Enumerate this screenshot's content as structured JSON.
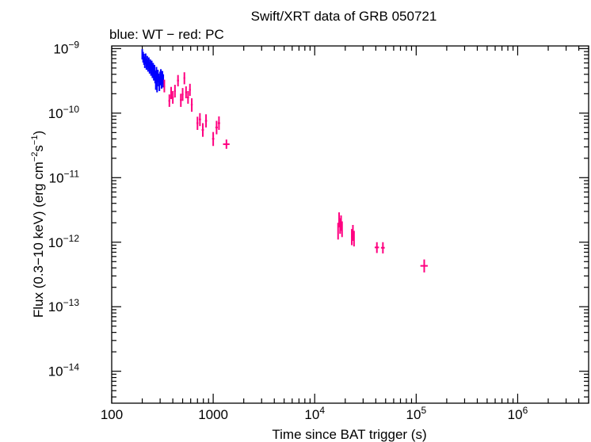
{
  "chart_data": {
    "type": "scatter",
    "title": "Swift/XRT data of GRB 050721",
    "subtitle": "blue: WT − red: PC",
    "xlabel": "Time since BAT trigger (s)",
    "ylabel_parts": [
      "Flux (0.3−10 keV) (erg cm",
      "−2",
      "s",
      "−1",
      ")"
    ],
    "x_scale": "log",
    "y_scale": "log",
    "xlim": [
      100,
      5000000
    ],
    "ylim": [
      3.2e-15,
      1.1e-09
    ],
    "x_ticks": [
      {
        "value": 100,
        "label": "100"
      },
      {
        "value": 1000,
        "label": "1000"
      },
      {
        "value": 10000,
        "base": "10",
        "exp": "4"
      },
      {
        "value": 100000,
        "base": "10",
        "exp": "5"
      },
      {
        "value": 1000000,
        "base": "10",
        "exp": "6"
      }
    ],
    "y_ticks": [
      {
        "value": 1e-09,
        "base": "10",
        "exp": "−9"
      },
      {
        "value": 1e-10,
        "base": "10",
        "exp": "−10"
      },
      {
        "value": 1e-11,
        "base": "10",
        "exp": "−11"
      },
      {
        "value": 1e-12,
        "base": "10",
        "exp": "−12"
      },
      {
        "value": 1e-13,
        "base": "10",
        "exp": "−13"
      },
      {
        "value": 1e-14,
        "base": "10",
        "exp": "−14"
      }
    ],
    "grid": false,
    "series": [
      {
        "mode": "WT",
        "color": "#0000ff",
        "points": [
          {
            "t": 200,
            "f": 8.2e-10,
            "tlo": 198,
            "thi": 202,
            "flo": 6.8e-10,
            "fhi": 9.8e-10
          },
          {
            "t": 204,
            "f": 7.4e-10,
            "tlo": 202,
            "thi": 206,
            "flo": 6.1e-10,
            "fhi": 8.9e-10
          },
          {
            "t": 208,
            "f": 6.9e-10,
            "tlo": 206,
            "thi": 210,
            "flo": 5.6e-10,
            "fhi": 8.3e-10
          },
          {
            "t": 212,
            "f": 6.2e-10,
            "tlo": 210,
            "thi": 214,
            "flo": 5e-10,
            "fhi": 7.5e-10
          },
          {
            "t": 216,
            "f": 7e-10,
            "tlo": 214,
            "thi": 218,
            "flo": 5.7e-10,
            "fhi": 8.4e-10
          },
          {
            "t": 220,
            "f": 5.8e-10,
            "tlo": 218,
            "thi": 222,
            "flo": 4.7e-10,
            "fhi": 7e-10
          },
          {
            "t": 224,
            "f": 6.4e-10,
            "tlo": 222,
            "thi": 226,
            "flo": 5.2e-10,
            "fhi": 7.7e-10
          },
          {
            "t": 228,
            "f": 5.5e-10,
            "tlo": 226,
            "thi": 230,
            "flo": 4.4e-10,
            "fhi": 6.7e-10
          },
          {
            "t": 232,
            "f": 6e-10,
            "tlo": 230,
            "thi": 234,
            "flo": 4.9e-10,
            "fhi": 7.3e-10
          },
          {
            "t": 236,
            "f": 5.1e-10,
            "tlo": 234,
            "thi": 238,
            "flo": 4.1e-10,
            "fhi": 6.2e-10
          },
          {
            "t": 240,
            "f": 5.6e-10,
            "tlo": 238,
            "thi": 242,
            "flo": 4.5e-10,
            "fhi": 6.8e-10
          },
          {
            "t": 244,
            "f": 4.8e-10,
            "tlo": 242,
            "thi": 246,
            "flo": 3.8e-10,
            "fhi": 5.9e-10
          },
          {
            "t": 248,
            "f": 5.3e-10,
            "tlo": 246,
            "thi": 250,
            "flo": 4.2e-10,
            "fhi": 6.5e-10
          },
          {
            "t": 252,
            "f": 4.4e-10,
            "tlo": 250,
            "thi": 254,
            "flo": 3.5e-10,
            "fhi": 5.4e-10
          },
          {
            "t": 256,
            "f": 4.9e-10,
            "tlo": 254,
            "thi": 258,
            "flo": 3.9e-10,
            "fhi": 6e-10
          },
          {
            "t": 260,
            "f": 4e-10,
            "tlo": 258,
            "thi": 262,
            "flo": 3.2e-10,
            "fhi": 4.9e-10
          },
          {
            "t": 264,
            "f": 4.6e-10,
            "tlo": 262,
            "thi": 266,
            "flo": 3.7e-10,
            "fhi": 5.6e-10
          },
          {
            "t": 268,
            "f": 3.7e-10,
            "tlo": 266,
            "thi": 270,
            "flo": 2.9e-10,
            "fhi": 4.6e-10
          },
          {
            "t": 272,
            "f": 3e-10,
            "tlo": 270,
            "thi": 274,
            "flo": 2.3e-10,
            "fhi": 3.8e-10
          },
          {
            "t": 276,
            "f": 4.2e-10,
            "tlo": 274,
            "thi": 278,
            "flo": 3.3e-10,
            "fhi": 5.2e-10
          },
          {
            "t": 280,
            "f": 2.7e-10,
            "tlo": 278,
            "thi": 282,
            "flo": 2.1e-10,
            "fhi": 3.4e-10
          },
          {
            "t": 285,
            "f": 3.8e-10,
            "tlo": 282,
            "thi": 288,
            "flo": 3e-10,
            "fhi": 4.7e-10
          },
          {
            "t": 290,
            "f": 3.3e-10,
            "tlo": 288,
            "thi": 292,
            "flo": 2.6e-10,
            "fhi": 4.1e-10
          },
          {
            "t": 295,
            "f": 2.9e-10,
            "tlo": 292,
            "thi": 298,
            "flo": 2.2e-10,
            "fhi": 3.7e-10
          },
          {
            "t": 300,
            "f": 3.5e-10,
            "tlo": 298,
            "thi": 302,
            "flo": 2.7e-10,
            "fhi": 4.4e-10
          },
          {
            "t": 305,
            "f": 3.9e-10,
            "tlo": 302,
            "thi": 308,
            "flo": 3.1e-10,
            "fhi": 4.8e-10
          },
          {
            "t": 310,
            "f": 3.1e-10,
            "tlo": 308,
            "thi": 313,
            "flo": 2.4e-10,
            "fhi": 3.9e-10
          },
          {
            "t": 316,
            "f": 3.6e-10,
            "tlo": 313,
            "thi": 319,
            "flo": 2.8e-10,
            "fhi": 4.5e-10
          },
          {
            "t": 322,
            "f": 3.2e-10,
            "tlo": 319,
            "thi": 325,
            "flo": 2.5e-10,
            "fhi": 4e-10
          }
        ]
      },
      {
        "mode": "PC",
        "color": "#ff0080",
        "points": [
          {
            "t": 330,
            "f": 2.6e-10,
            "tlo": 325,
            "thi": 336,
            "flo": 2.1e-10,
            "fhi": 3.3e-10
          },
          {
            "t": 370,
            "f": 1.55e-10,
            "tlo": 362,
            "thi": 378,
            "flo": 1.25e-10,
            "fhi": 1.95e-10
          },
          {
            "t": 385,
            "f": 2.05e-10,
            "tlo": 378,
            "thi": 392,
            "flo": 1.65e-10,
            "fhi": 2.55e-10
          },
          {
            "t": 400,
            "f": 1.75e-10,
            "tlo": 393,
            "thi": 408,
            "flo": 1.4e-10,
            "fhi": 2.2e-10
          },
          {
            "t": 420,
            "f": 2.2e-10,
            "tlo": 412,
            "thi": 428,
            "flo": 1.75e-10,
            "fhi": 2.75e-10
          },
          {
            "t": 450,
            "f": 3.2e-10,
            "tlo": 440,
            "thi": 460,
            "flo": 2.6e-10,
            "fhi": 3.9e-10
          },
          {
            "t": 480,
            "f": 1.6e-10,
            "tlo": 470,
            "thi": 490,
            "flo": 1.25e-10,
            "fhi": 2e-10
          },
          {
            "t": 500,
            "f": 1.95e-10,
            "tlo": 490,
            "thi": 510,
            "flo": 1.55e-10,
            "fhi": 2.45e-10
          },
          {
            "t": 520,
            "f": 3.5e-10,
            "tlo": 510,
            "thi": 530,
            "flo": 2.8e-10,
            "fhi": 4.3e-10
          },
          {
            "t": 540,
            "f": 2.1e-10,
            "tlo": 530,
            "thi": 552,
            "flo": 1.7e-10,
            "fhi": 2.6e-10
          },
          {
            "t": 565,
            "f": 1.75e-10,
            "tlo": 552,
            "thi": 578,
            "flo": 1.4e-10,
            "fhi": 2.2e-10
          },
          {
            "t": 590,
            "f": 2.3e-10,
            "tlo": 578,
            "thi": 602,
            "flo": 1.85e-10,
            "fhi": 2.85e-10
          },
          {
            "t": 615,
            "f": 1.35e-10,
            "tlo": 602,
            "thi": 628,
            "flo": 1.05e-10,
            "fhi": 1.7e-10
          },
          {
            "t": 700,
            "f": 7e-11,
            "tlo": 685,
            "thi": 715,
            "flo": 5.5e-11,
            "fhi": 8.8e-11
          },
          {
            "t": 740,
            "f": 8e-11,
            "tlo": 722,
            "thi": 758,
            "flo": 6.3e-11,
            "fhi": 1e-10
          },
          {
            "t": 790,
            "f": 5.5e-11,
            "tlo": 770,
            "thi": 810,
            "flo": 4.3e-11,
            "fhi": 7e-11
          },
          {
            "t": 850,
            "f": 7.6e-11,
            "tlo": 830,
            "thi": 870,
            "flo": 6e-11,
            "fhi": 9.6e-11
          },
          {
            "t": 1000,
            "f": 4e-11,
            "tlo": 975,
            "thi": 1025,
            "flo": 3.1e-11,
            "fhi": 5.1e-11
          },
          {
            "t": 1080,
            "f": 6e-11,
            "tlo": 1050,
            "thi": 1110,
            "flo": 4.7e-11,
            "fhi": 7.6e-11
          },
          {
            "t": 1140,
            "f": 7e-11,
            "tlo": 1110,
            "thi": 1170,
            "flo": 5.5e-11,
            "fhi": 8.9e-11
          },
          {
            "t": 1350,
            "f": 3.3e-11,
            "tlo": 1250,
            "thi": 1450,
            "flo": 2.8e-11,
            "fhi": 3.9e-11
          },
          {
            "t": 17000,
            "f": 1.5e-12,
            "tlo": 16800,
            "thi": 17200,
            "flo": 1.1e-12,
            "fhi": 2e-12
          },
          {
            "t": 17400,
            "f": 2.2e-12,
            "tlo": 17200,
            "thi": 17600,
            "flo": 1.7e-12,
            "fhi": 2.9e-12
          },
          {
            "t": 17800,
            "f": 1.8e-12,
            "tlo": 17600,
            "thi": 18000,
            "flo": 1.35e-12,
            "fhi": 2.35e-12
          },
          {
            "t": 18200,
            "f": 2e-12,
            "tlo": 18000,
            "thi": 18400,
            "flo": 1.5e-12,
            "fhi": 2.6e-12
          },
          {
            "t": 18600,
            "f": 1.6e-12,
            "tlo": 18400,
            "thi": 18800,
            "flo": 1.2e-12,
            "fhi": 2.1e-12
          },
          {
            "t": 23200,
            "f": 1.2e-12,
            "tlo": 22900,
            "thi": 23500,
            "flo": 9e-13,
            "fhi": 1.6e-12
          },
          {
            "t": 23800,
            "f": 1.4e-12,
            "tlo": 23500,
            "thi": 24100,
            "flo": 1.05e-12,
            "fhi": 1.85e-12
          },
          {
            "t": 24400,
            "f": 1.15e-12,
            "tlo": 24100,
            "thi": 24700,
            "flo": 8.6e-13,
            "fhi": 1.5e-12
          },
          {
            "t": 41000,
            "f": 8.3e-13,
            "tlo": 39000,
            "thi": 43000,
            "flo": 6.8e-13,
            "fhi": 1e-12
          },
          {
            "t": 47000,
            "f": 8.2e-13,
            "tlo": 45000,
            "thi": 49000,
            "flo": 6.7e-13,
            "fhi": 1e-12
          },
          {
            "t": 120000,
            "f": 4.3e-13,
            "tlo": 110000,
            "thi": 130000,
            "flo": 3.4e-13,
            "fhi": 5.4e-13
          }
        ]
      }
    ]
  }
}
